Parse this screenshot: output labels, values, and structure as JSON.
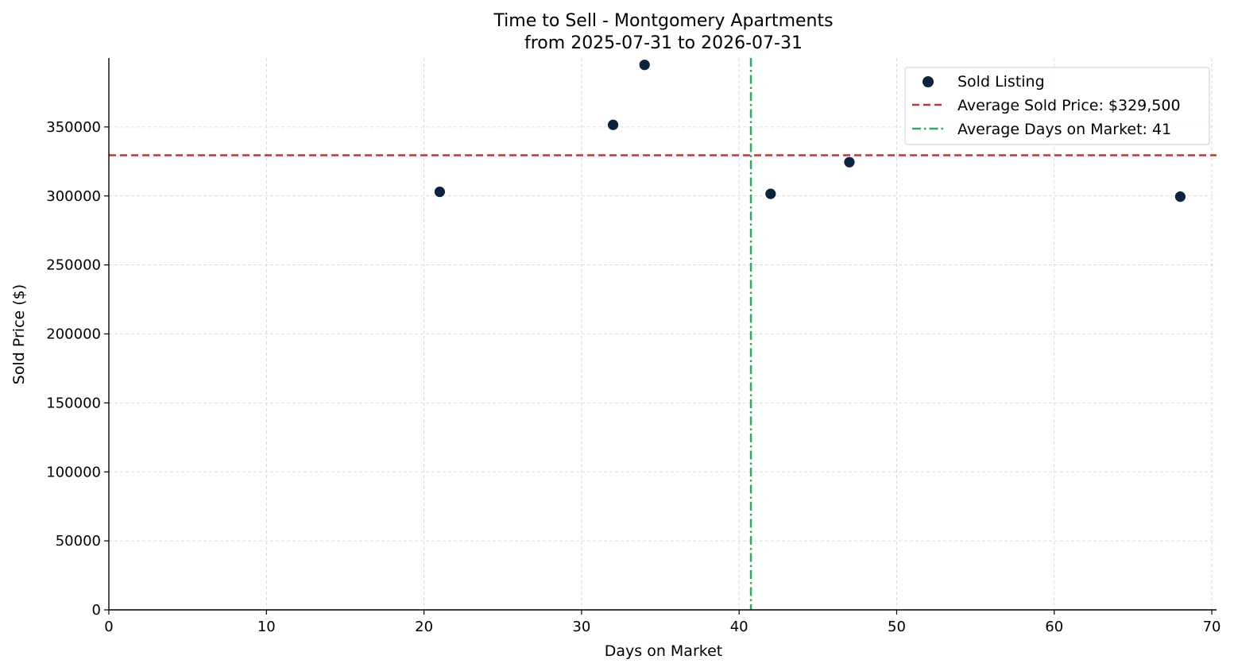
{
  "chart_data": {
    "type": "scatter",
    "title": "Time to Sell - Montgomery Apartments",
    "subtitle": "from 2025-07-31 to 2026-07-31",
    "xlabel": "Days on Market",
    "ylabel": "Sold Price ($)",
    "xlim": [
      0,
      70.3
    ],
    "ylim": [
      0,
      400000
    ],
    "x_ticks": [
      0,
      10,
      20,
      30,
      40,
      50,
      60,
      70
    ],
    "y_ticks": [
      0,
      50000,
      100000,
      150000,
      200000,
      250000,
      300000,
      350000
    ],
    "grid": true,
    "legend_position": "top-right",
    "series": [
      {
        "name": "Sold Listing",
        "color": "#0c2340",
        "points": [
          {
            "x": 21,
            "y": 303000
          },
          {
            "x": 32,
            "y": 351500
          },
          {
            "x": 34,
            "y": 395000
          },
          {
            "x": 42,
            "y": 301500
          },
          {
            "x": 47,
            "y": 324500
          },
          {
            "x": 68,
            "y": 299500
          }
        ]
      }
    ],
    "reference_lines": [
      {
        "name": "Average Sold Price: $329,500",
        "orientation": "horizontal",
        "value": 329500,
        "color": "#c0392b",
        "style": "dashed"
      },
      {
        "name": "Average Days on Market: 41",
        "orientation": "vertical",
        "value": 40.75,
        "color": "#27ae60",
        "style": "dashdot"
      }
    ]
  }
}
